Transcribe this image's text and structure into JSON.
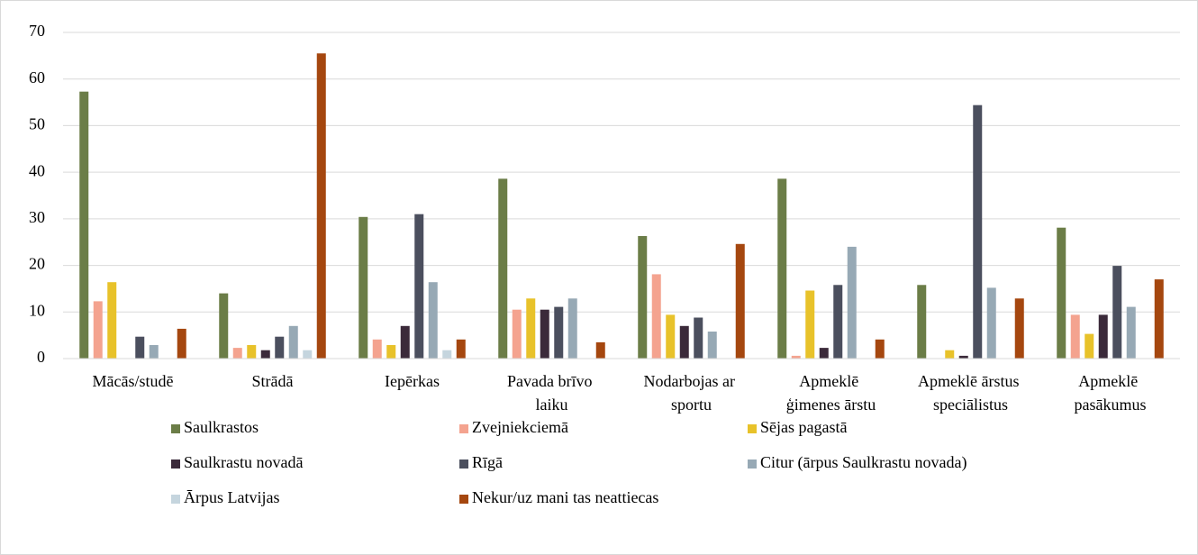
{
  "chart_data": {
    "type": "bar",
    "categories": [
      "Mācās/studē",
      "Strādā",
      "Iepērkas",
      "Pavada brīvo laiku",
      "Nodarbojas ar sportu",
      "Apmeklē ģimenes ārstu",
      "Apmeklē ārstus speciālistus",
      "Apmeklē pasākumus"
    ],
    "series": [
      {
        "name": "Saulkrastos",
        "color": "#6b7d47",
        "values": [
          57.3,
          14.0,
          30.4,
          38.6,
          26.3,
          38.6,
          15.8,
          28.1
        ]
      },
      {
        "name": "Zvejniekciemā",
        "color": "#f4a38f",
        "values": [
          12.3,
          2.3,
          4.1,
          10.5,
          18.1,
          0.6,
          0,
          9.4
        ]
      },
      {
        "name": "Sējas pagastā",
        "color": "#e8c22a",
        "values": [
          16.4,
          2.9,
          2.9,
          12.9,
          9.4,
          14.6,
          1.8,
          5.3
        ]
      },
      {
        "name": "Saulkrastu novadā",
        "color": "#3b2a3a",
        "values": [
          0,
          1.8,
          7.0,
          10.5,
          7.0,
          2.3,
          0.6,
          9.4
        ]
      },
      {
        "name": "Rīgā",
        "color": "#4b4f5e",
        "values": [
          4.7,
          4.7,
          31.0,
          11.1,
          8.8,
          15.8,
          54.4,
          19.9
        ]
      },
      {
        "name": "Citur (ārpus Saulkrastu novada)",
        "color": "#97a9b5",
        "values": [
          2.9,
          7.0,
          16.4,
          12.9,
          5.8,
          24.0,
          15.2,
          11.1
        ]
      },
      {
        "name": "Ārpus Latvijas",
        "color": "#c5d5de",
        "values": [
          0,
          1.8,
          1.8,
          0,
          0,
          0,
          0,
          0
        ]
      },
      {
        "name": "Nekur/uz mani tas neattiecas",
        "color": "#a5470f",
        "values": [
          6.4,
          65.5,
          4.1,
          3.5,
          24.6,
          4.1,
          12.9,
          17.0
        ]
      }
    ],
    "ylim": [
      0,
      70
    ],
    "yticks": [
      0,
      10,
      20,
      30,
      40,
      50,
      60,
      70
    ],
    "grid": true,
    "legend": "bottom"
  }
}
